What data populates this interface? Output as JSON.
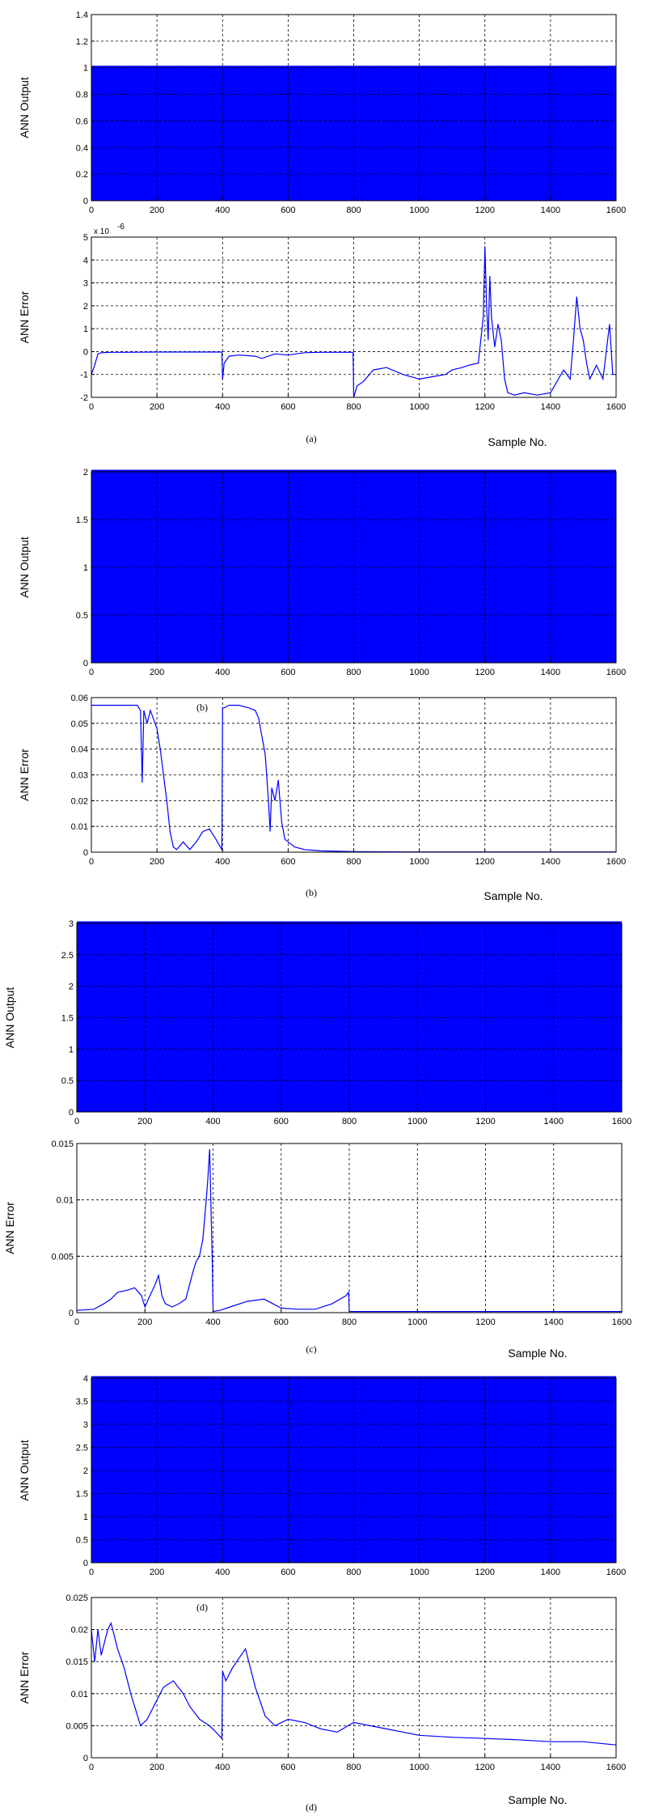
{
  "chart_data": [
    {
      "type": "area",
      "ylabel": "ANN Output",
      "xlim": [
        0,
        1600
      ],
      "ylim": [
        0,
        1.4
      ],
      "xticks": [
        "0",
        "200",
        "400",
        "600",
        "800",
        "1000",
        "1200",
        "1400",
        "1600"
      ],
      "yticks": [
        "0",
        "0.2",
        "0.4",
        "0.6",
        "0.8",
        "1",
        "1.2",
        "1.4"
      ],
      "grid": true,
      "series": [
        {
          "x": [
            0,
            1600
          ],
          "y": [
            1,
            1
          ]
        }
      ],
      "fill_color": "#0000ff"
    },
    {
      "type": "line",
      "ylabel": "ANN Error",
      "xlim": [
        0,
        1600
      ],
      "ylim": [
        -2,
        5
      ],
      "xticks": [
        "0",
        "200",
        "400",
        "600",
        "800",
        "1000",
        "1200",
        "1400",
        "1600"
      ],
      "yticks": [
        "-2",
        "-1",
        "0",
        "1",
        "2",
        "3",
        "4",
        "5"
      ],
      "exponent_label": "x 10",
      "exponent_power": "-6",
      "grid": true,
      "caption": "(a)",
      "xlabel": "Sample No.",
      "series": [
        {
          "x": [
            0,
            10,
            20,
            30,
            60,
            100,
            200,
            300,
            398,
            400,
            405,
            420,
            450,
            500,
            520,
            560,
            600,
            650,
            700,
            798,
            800,
            810,
            830,
            860,
            900,
            950,
            1000,
            1040,
            1080,
            1100,
            1130,
            1150,
            1180,
            1195,
            1200,
            1205,
            1210,
            1215,
            1220,
            1230,
            1240,
            1250,
            1260,
            1270,
            1290,
            1320,
            1360,
            1400,
            1420,
            1440,
            1460,
            1470,
            1480,
            1490,
            1500,
            1510,
            1520,
            1540,
            1560,
            1580,
            1590,
            1600
          ],
          "y": [
            -1,
            -0.6,
            -0.1,
            -0.05,
            -0.03,
            -0.03,
            -0.02,
            -0.02,
            -0.02,
            -1.2,
            -0.5,
            -0.2,
            -0.15,
            -0.2,
            -0.3,
            -0.1,
            -0.15,
            -0.05,
            -0.03,
            -0.03,
            -2,
            -1.5,
            -1.3,
            -0.8,
            -0.7,
            -1,
            -1.2,
            -1.1,
            -1,
            -0.8,
            -0.7,
            -0.6,
            -0.5,
            1.5,
            4.6,
            2,
            0.5,
            3.3,
            1.5,
            0.2,
            1.2,
            0.5,
            -1.2,
            -1.8,
            -1.9,
            -1.8,
            -1.9,
            -1.8,
            -1.3,
            -0.8,
            -1.2,
            0.5,
            2.4,
            1,
            0.5,
            -0.5,
            -1.2,
            -0.6,
            -1.2,
            1.2,
            -1,
            -1
          ]
        }
      ],
      "line_color": "#0000ff"
    },
    {
      "type": "area",
      "ylabel": "ANN Output",
      "xlim": [
        0,
        1600
      ],
      "ylim": [
        0,
        2
      ],
      "xticks": [
        "0",
        "200",
        "400",
        "600",
        "800",
        "1000",
        "1200",
        "1400",
        "1600"
      ],
      "yticks": [
        "0",
        "0.5",
        "1",
        "1.5",
        "2"
      ],
      "grid": true,
      "series": [
        {
          "x": [
            0,
            1600
          ],
          "y": [
            2,
            2
          ]
        }
      ],
      "fill_color": "#0000ff"
    },
    {
      "type": "line",
      "ylabel": "ANN Error",
      "xlim": [
        0,
        1600
      ],
      "ylim": [
        0,
        0.06
      ],
      "xticks": [
        "0",
        "200",
        "400",
        "600",
        "800",
        "1000",
        "1200",
        "1400",
        "1600"
      ],
      "yticks": [
        "0",
        "0.01",
        "0.02",
        "0.03",
        "0.04",
        "0.05",
        "0.06"
      ],
      "grid": true,
      "inset_label": "(b)",
      "caption": "(b)",
      "xlabel": "Sample No.",
      "series": [
        {
          "x": [
            0,
            50,
            100,
            140,
            150,
            155,
            160,
            170,
            180,
            200,
            210,
            220,
            230,
            240,
            250,
            260,
            280,
            300,
            320,
            340,
            360,
            380,
            398,
            400,
            405,
            420,
            450,
            480,
            500,
            510,
            520,
            530,
            540,
            545,
            550,
            560,
            570,
            580,
            590,
            600,
            620,
            650,
            700,
            800,
            1000,
            1200,
            1400,
            1600
          ],
          "y": [
            0.057,
            0.057,
            0.057,
            0.057,
            0.055,
            0.027,
            0.055,
            0.05,
            0.055,
            0.048,
            0.04,
            0.03,
            0.02,
            0.008,
            0.002,
            0.001,
            0.004,
            0.001,
            0.004,
            0.008,
            0.009,
            0.005,
            0.001,
            0.056,
            0.056,
            0.057,
            0.057,
            0.056,
            0.055,
            0.052,
            0.045,
            0.038,
            0.02,
            0.008,
            0.025,
            0.02,
            0.028,
            0.012,
            0.005,
            0.004,
            0.002,
            0.001,
            0.0005,
            0.0002,
            0.0001,
            0.0001,
            0.0001,
            0.0001
          ]
        }
      ],
      "line_color": "#0000ff"
    },
    {
      "type": "area",
      "ylabel": "ANN Output",
      "xlim": [
        0,
        1600
      ],
      "ylim": [
        0,
        3
      ],
      "xticks": [
        "0",
        "200",
        "400",
        "600",
        "800",
        "1000",
        "1200",
        "1400",
        "1600"
      ],
      "yticks": [
        "0",
        "0.5",
        "1",
        "1.5",
        "2",
        "2.5",
        "3"
      ],
      "grid": true,
      "series": [
        {
          "x": [
            0,
            1600
          ],
          "y": [
            3,
            3
          ]
        }
      ],
      "fill_color": "#0000ff"
    },
    {
      "type": "line",
      "ylabel": "ANN Error",
      "xlim": [
        0,
        1600
      ],
      "ylim": [
        0,
        0.015
      ],
      "xticks": [
        "0",
        "200",
        "400",
        "600",
        "800",
        "1000",
        "1200",
        "1400",
        "1600"
      ],
      "yticks": [
        "0",
        "0.005",
        "0.01",
        "0.015"
      ],
      "grid": true,
      "caption": "(c)",
      "xlabel": "Sample No.",
      "series": [
        {
          "x": [
            0,
            50,
            80,
            100,
            120,
            150,
            170,
            190,
            200,
            210,
            230,
            240,
            250,
            260,
            280,
            300,
            320,
            340,
            350,
            360,
            370,
            380,
            385,
            390,
            395,
            398,
            400,
            420,
            450,
            500,
            550,
            600,
            650,
            700,
            750,
            790,
            798,
            800,
            900,
            1000,
            1200,
            1400,
            1600
          ],
          "y": [
            0.0002,
            0.0003,
            0.0008,
            0.0012,
            0.0018,
            0.002,
            0.0022,
            0.0015,
            0.0005,
            0.0012,
            0.0025,
            0.0033,
            0.0015,
            0.0008,
            0.0005,
            0.0008,
            0.0012,
            0.0035,
            0.0045,
            0.005,
            0.0065,
            0.01,
            0.012,
            0.0145,
            0.008,
            0.004,
            0.0001,
            0.0002,
            0.0005,
            0.001,
            0.0012,
            0.0004,
            0.0003,
            0.0003,
            0.0008,
            0.0015,
            0.0018,
            0.0001,
            0.0001,
            0.0001,
            0.0001,
            0.0001,
            0.0001
          ]
        }
      ],
      "line_color": "#0000ff"
    },
    {
      "type": "area",
      "ylabel": "ANN Output",
      "xlim": [
        0,
        1600
      ],
      "ylim": [
        0,
        4
      ],
      "xticks": [
        "0",
        "200",
        "400",
        "600",
        "800",
        "1000",
        "1200",
        "1400",
        "1600"
      ],
      "yticks": [
        "0",
        "0.5",
        "1",
        "1.5",
        "2",
        "2.5",
        "3",
        "3.5",
        "4"
      ],
      "grid": true,
      "series": [
        {
          "x": [
            0,
            1600
          ],
          "y": [
            4,
            4
          ]
        }
      ],
      "fill_color": "#0000ff"
    },
    {
      "type": "line",
      "ylabel": "ANN Error",
      "xlim": [
        0,
        1600
      ],
      "ylim": [
        0,
        0.025
      ],
      "xticks": [
        "0",
        "200",
        "400",
        "600",
        "800",
        "1000",
        "1200",
        "1400",
        "1600"
      ],
      "yticks": [
        "0",
        "0.005",
        "0.01",
        "0.015",
        "0.02",
        "0.025"
      ],
      "grid": true,
      "inset_label": "(d)",
      "caption": "(d)",
      "xlabel": "Sample No.",
      "series": [
        {
          "x": [
            0,
            10,
            20,
            30,
            40,
            50,
            60,
            70,
            80,
            100,
            120,
            150,
            170,
            200,
            220,
            250,
            280,
            300,
            330,
            360,
            380,
            398,
            400,
            410,
            430,
            450,
            470,
            500,
            530,
            560,
            600,
            650,
            700,
            750,
            800,
            850,
            900,
            950,
            1000,
            1100,
            1200,
            1300,
            1400,
            1500,
            1600
          ],
          "y": [
            0.02,
            0.015,
            0.02,
            0.016,
            0.018,
            0.02,
            0.021,
            0.019,
            0.017,
            0.014,
            0.01,
            0.005,
            0.006,
            0.009,
            0.011,
            0.012,
            0.01,
            0.008,
            0.006,
            0.005,
            0.004,
            0.003,
            0.0135,
            0.012,
            0.014,
            0.0155,
            0.017,
            0.011,
            0.0065,
            0.005,
            0.006,
            0.0055,
            0.0045,
            0.004,
            0.0055,
            0.005,
            0.0045,
            0.004,
            0.0035,
            0.0032,
            0.003,
            0.0028,
            0.0025,
            0.0025,
            0.002
          ]
        }
      ],
      "line_color": "#0000ff"
    }
  ]
}
